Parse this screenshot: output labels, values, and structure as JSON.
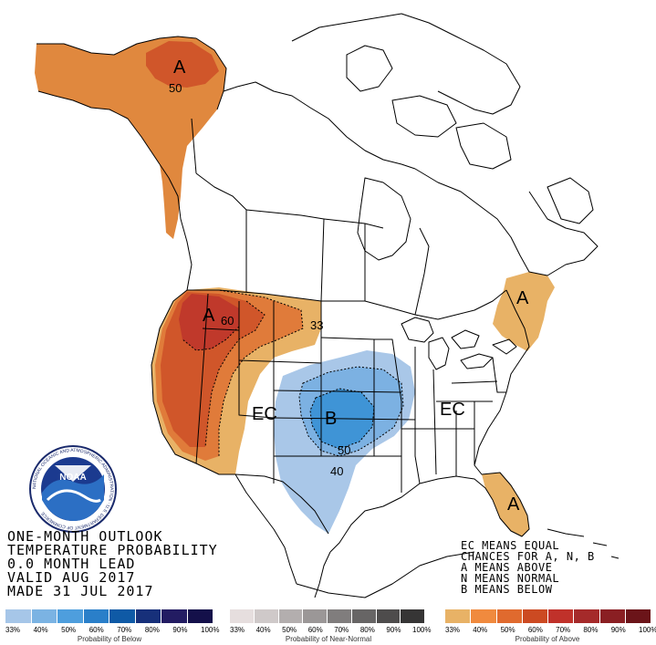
{
  "outlook_title": [
    "ONE-MONTH OUTLOOK",
    "TEMPERATURE PROBABILITY",
    "0.0 MONTH LEAD",
    "VALID AUG 2017",
    "MADE 31 JUL 2017"
  ],
  "key_text": [
    "EC MEANS EQUAL",
    "CHANCES FOR A, N, B",
    "A MEANS ABOVE",
    "N MEANS NORMAL",
    "B MEANS BELOW"
  ],
  "map_labels": {
    "alaska_category": "A",
    "alaska_contour": "50",
    "west_category": "A",
    "west_contour": "60",
    "plains_contour": "33",
    "central_ec": "EC",
    "east_ec": "EC",
    "below_category": "B",
    "below_contour_50": "50",
    "below_contour_40": "40",
    "northeast_category": "A",
    "florida_category": "A"
  },
  "legend": {
    "below": {
      "title": "Probability of Below",
      "ticks": [
        "33%",
        "40%",
        "50%",
        "60%",
        "70%",
        "80%",
        "90%",
        "100%"
      ],
      "colors": [
        "#a6c6e8",
        "#7bb3e3",
        "#4e9edd",
        "#2a7fc9",
        "#0f5aa6",
        "#17307a",
        "#231c62",
        "#14104a"
      ]
    },
    "normal": {
      "title": "Probability of Near-Normal",
      "ticks": [
        "33%",
        "40%",
        "50%",
        "60%",
        "70%",
        "80%",
        "90%",
        "100%"
      ],
      "colors": [
        "#e6dede",
        "#cfc9c9",
        "#b3aeae",
        "#9b9797",
        "#807d7d",
        "#676565",
        "#4e4c4c",
        "#363535"
      ]
    },
    "above": {
      "title": "Probability of Above",
      "ticks": [
        "33%",
        "40%",
        "50%",
        "60%",
        "70%",
        "80%",
        "90%",
        "100%"
      ],
      "colors": [
        "#e8b266",
        "#f08a3e",
        "#e06a2e",
        "#cc4a22",
        "#c0312a",
        "#a52a2a",
        "#8a1f23",
        "#6b1419"
      ]
    }
  },
  "logo": {
    "text": "NOAA",
    "ring_text": "NATIONAL OCEANIC AND ATMOSPHERIC ADMINISTRATION · U.S. DEPARTMENT OF COMMERCE"
  },
  "colors": {
    "above_33": "#e8b266",
    "above_40": "#e07b3a",
    "above_50": "#d0562a",
    "above_60": "#c0392b",
    "below_33": "#a9c7e8",
    "below_40": "#7cb1e2",
    "below_50": "#3f94d6",
    "border": "#000000"
  }
}
